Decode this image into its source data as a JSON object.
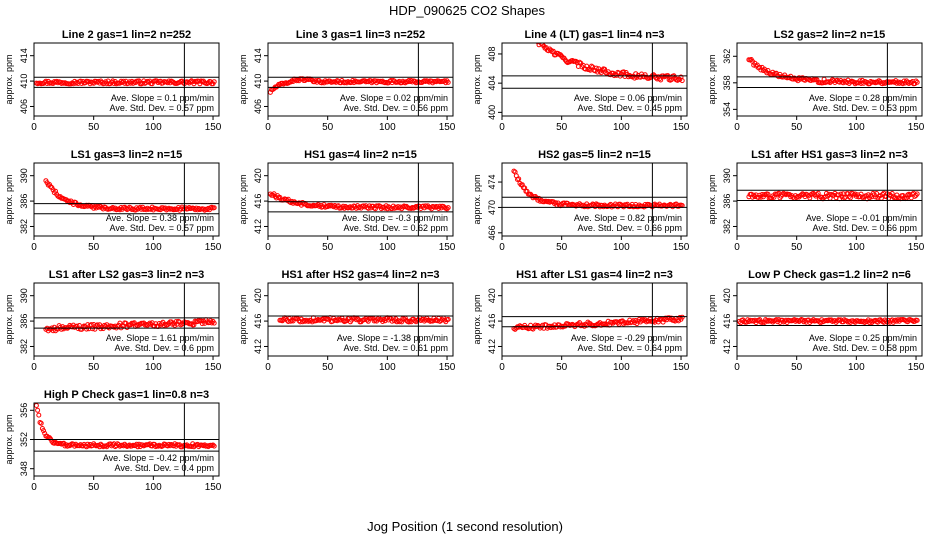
{
  "title": "HDP_090625  CO2 Shapes",
  "xlabel": "Jog Position (1 second resolution)",
  "ylabel": "approx. ppm",
  "slope_label": "Ave. Slope = ",
  "slope_unit": "ppm/min",
  "sd_label": "Ave. Std. Dev. = ",
  "sd_unit": "ppm",
  "colors": {
    "points": "#ff0000",
    "axes": "#000000"
  },
  "chart_data": [
    {
      "type": "scatter",
      "title": "Line 2 gas=1 lin=2 n=252",
      "xlim": [
        0,
        155
      ],
      "x_ticks": [
        0,
        50,
        100,
        150
      ],
      "ylim": [
        404.5,
        416
      ],
      "y_ticks": [
        406,
        410,
        414
      ],
      "hlines": [
        410.6,
        409.0
      ],
      "vline": 126,
      "slope": "0.1",
      "sd": "0.57",
      "series": [
        {
          "shape": "flat",
          "start": 2,
          "end": 151,
          "level": 409.8,
          "noise": 0.25
        }
      ]
    },
    {
      "type": "scatter",
      "title": "Line 3 gas=1 lin=3 n=252",
      "xlim": [
        0,
        155
      ],
      "x_ticks": [
        0,
        50,
        100,
        150
      ],
      "ylim": [
        404.5,
        416
      ],
      "y_ticks": [
        406,
        410,
        414
      ],
      "hlines": [
        410.6,
        409.0
      ],
      "vline": 126,
      "slope": "0.02",
      "sd": "0.56",
      "series": [
        {
          "shape": "rise",
          "start": 2,
          "end": 151,
          "level": 409.9,
          "noise": 0.2
        }
      ]
    },
    {
      "type": "scatter",
      "title": "Line 4 (LT) gas=1 lin=4 n=3",
      "xlim": [
        0,
        155
      ],
      "x_ticks": [
        0,
        50,
        100,
        150
      ],
      "ylim": [
        399.5,
        409.5
      ],
      "y_ticks": [
        400,
        404,
        408
      ],
      "hlines": [
        405.0,
        403.3
      ],
      "vline": 126,
      "slope": "0.06",
      "sd": "0.45",
      "series": [
        {
          "shape": "decay",
          "start": 10,
          "end": 151,
          "level": 404.4,
          "amp": 9,
          "tau": 38,
          "noise": 0.35
        }
      ]
    },
    {
      "type": "scatter",
      "title": "LS2 gas=2 lin=2 n=15",
      "xlim": [
        0,
        155
      ],
      "x_ticks": [
        0,
        50,
        100,
        150
      ],
      "ylim": [
        353,
        364
      ],
      "y_ticks": [
        354,
        358,
        362
      ],
      "hlines": [
        358.9,
        357.3
      ],
      "vline": 126,
      "slope": "0.28",
      "sd": "0.53",
      "series": [
        {
          "shape": "decay",
          "start": 10,
          "end": 151,
          "level": 358.1,
          "amp": 3.5,
          "tau": 20,
          "noise": 0.3
        }
      ]
    },
    {
      "type": "scatter",
      "title": "LS1 gas=3 lin=2 n=15",
      "xlim": [
        0,
        155
      ],
      "x_ticks": [
        0,
        50,
        100,
        150
      ],
      "ylim": [
        380.5,
        392
      ],
      "y_ticks": [
        382,
        386,
        390
      ],
      "hlines": [
        385.6,
        384.0
      ],
      "vline": 126,
      "slope": "0.38",
      "sd": "0.57",
      "series": [
        {
          "shape": "decay",
          "start": 10,
          "end": 151,
          "level": 384.8,
          "amp": 4.5,
          "tau": 14,
          "noise": 0.25
        }
      ]
    },
    {
      "type": "scatter",
      "title": "HS1 gas=4 lin=2 n=15",
      "xlim": [
        0,
        155
      ],
      "x_ticks": [
        0,
        50,
        100,
        150
      ],
      "ylim": [
        410.5,
        422
      ],
      "y_ticks": [
        412,
        416,
        420
      ],
      "hlines": [
        415.9,
        414.3
      ],
      "vline": 126,
      "slope": "-0.3",
      "sd": "0.62",
      "series": [
        {
          "shape": "decay",
          "start": 2,
          "end": 151,
          "level": 415.0,
          "amp": 2.2,
          "tau": 20,
          "noise": 0.25
        }
      ]
    },
    {
      "type": "scatter",
      "title": "HS2 gas=5 lin=2 n=15",
      "xlim": [
        0,
        155
      ],
      "x_ticks": [
        0,
        50,
        100,
        150
      ],
      "ylim": [
        465.5,
        477
      ],
      "y_ticks": [
        466,
        470,
        474
      ],
      "hlines": [
        471.6,
        470.0
      ],
      "vline": 126,
      "slope": "0.82",
      "sd": "0.66",
      "series": [
        {
          "shape": "decay",
          "start": 10,
          "end": 151,
          "level": 470.3,
          "amp": 5.5,
          "tau": 12,
          "noise": 0.25
        }
      ]
    },
    {
      "type": "scatter",
      "title": "LS1 after HS1 gas=3 lin=2 n=3",
      "xlim": [
        0,
        155
      ],
      "x_ticks": [
        0,
        50,
        100,
        150
      ],
      "ylim": [
        380.5,
        392
      ],
      "y_ticks": [
        382,
        386,
        390
      ],
      "hlines": [
        387.7,
        386.1
      ],
      "vline": 126,
      "slope": "-0.01",
      "sd": "0.66",
      "series": [
        {
          "shape": "flat",
          "start": 10,
          "end": 151,
          "level": 386.8,
          "noise": 0.45
        }
      ]
    },
    {
      "type": "scatter",
      "title": "LS1 after LS2 gas=3 lin=2 n=3",
      "xlim": [
        0,
        155
      ],
      "x_ticks": [
        0,
        50,
        100,
        150
      ],
      "ylim": [
        380.5,
        392
      ],
      "y_ticks": [
        382,
        386,
        390
      ],
      "hlines": [
        386.5,
        384.9
      ],
      "vline": 126,
      "slope": "1.61",
      "sd": "0.6",
      "series": [
        {
          "shape": "ramp",
          "start": 10,
          "end": 151,
          "level": 384.8,
          "to": 385.9,
          "noise": 0.4
        }
      ]
    },
    {
      "type": "scatter",
      "title": "HS1 after HS2 gas=4 lin=2 n=3",
      "xlim": [
        0,
        155
      ],
      "x_ticks": [
        0,
        50,
        100,
        150
      ],
      "ylim": [
        410.5,
        422
      ],
      "y_ticks": [
        412,
        416,
        420
      ],
      "hlines": [
        416.8,
        415.2
      ],
      "vline": 126,
      "slope": "-1.38",
      "sd": "0.61",
      "series": [
        {
          "shape": "flat",
          "start": 10,
          "end": 151,
          "level": 416.2,
          "noise": 0.35
        }
      ]
    },
    {
      "type": "scatter",
      "title": "HS1 after LS1 gas=4 lin=2 n=3",
      "xlim": [
        0,
        155
      ],
      "x_ticks": [
        0,
        50,
        100,
        150
      ],
      "ylim": [
        410.5,
        422
      ],
      "y_ticks": [
        412,
        416,
        420
      ],
      "hlines": [
        416.7,
        415.1
      ],
      "vline": 126,
      "slope": "-0.29",
      "sd": "0.64",
      "series": [
        {
          "shape": "ramp",
          "start": 10,
          "end": 151,
          "level": 414.9,
          "to": 416.3,
          "noise": 0.35
        }
      ]
    },
    {
      "type": "scatter",
      "title": "Low P Check gas=1.2 lin=2 n=6",
      "xlim": [
        0,
        155
      ],
      "x_ticks": [
        0,
        50,
        100,
        150
      ],
      "ylim": [
        410.5,
        422
      ],
      "y_ticks": [
        412,
        416,
        420
      ],
      "hlines": [
        416.8,
        415.3
      ],
      "vline": 126,
      "slope": "0.25",
      "sd": "0.58",
      "series": [
        {
          "shape": "flat",
          "start": 2,
          "end": 151,
          "level": 416.0,
          "noise": 0.25
        }
      ]
    },
    {
      "type": "scatter",
      "title": "High P Check gas=1 lin=0.8 n=3",
      "xlim": [
        0,
        155
      ],
      "x_ticks": [
        0,
        50,
        100,
        150
      ],
      "ylim": [
        347,
        357
      ],
      "y_ticks": [
        348,
        352,
        356
      ],
      "hlines": [
        352.0,
        350.4
      ],
      "vline": 126,
      "slope": "-0.42",
      "sd": "0.4",
      "series": [
        {
          "shape": "decay",
          "start": 2,
          "end": 151,
          "level": 351.2,
          "amp": 5.5,
          "tau": 6,
          "noise": 0.22
        }
      ]
    }
  ]
}
